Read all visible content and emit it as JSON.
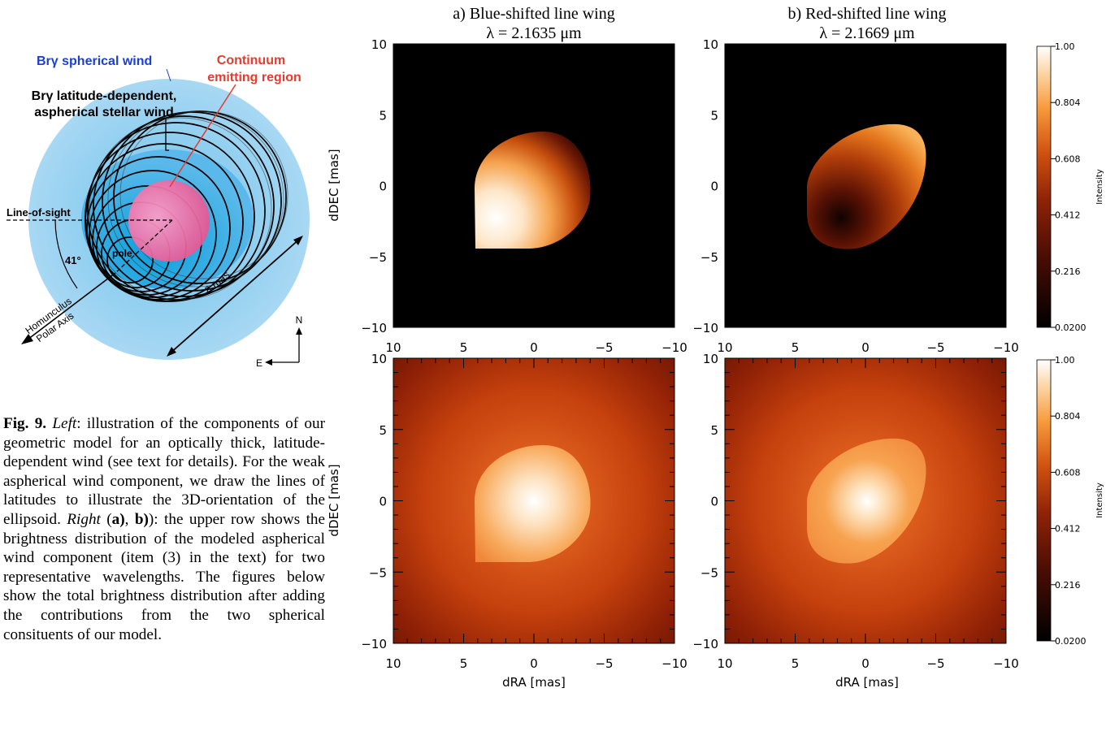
{
  "figure": {
    "schematic": {
      "wind_label": "Brγ spherical wind",
      "continuum_label_1": "Continuum",
      "continuum_label_2": "emitting region",
      "asph_label_1": "Brγ latitude-dependent,",
      "asph_label_2": "aspherical stellar wind",
      "los_label": "Line-of-sight",
      "angle_label": "41°",
      "pole_label": "pole",
      "axis_label_1": "Homunculus",
      "axis_label_2": "Polar Axis",
      "scale_label": "8 mas",
      "compass_n": "N",
      "compass_e": "E"
    },
    "panels": {
      "title_a_1": "a) Blue-shifted line wing",
      "title_a_2": "λ = 2.1635 μm",
      "title_b_1": "b) Red-shifted line wing",
      "title_b_2": "λ = 2.1669 μm",
      "xlabel": "dRA [mas]",
      "ylabel": "dDEC [mas]",
      "xticks": [
        "10",
        "5",
        "0",
        "−5",
        "−10"
      ],
      "yticks": [
        "10",
        "5",
        "0",
        "−5",
        "−10"
      ],
      "colorbar_label": "Intensity",
      "colorbar_ticks": [
        "1.00",
        "0.804",
        "0.608",
        "0.412",
        "0.216",
        "0.0200"
      ]
    },
    "caption": {
      "fig_label": "Fig. 9.",
      "left_label": "Left",
      "text_1": ": illustration of the components of our geometric model for an optically thick, latitude-dependent wind (see text for details). For the weak aspherical wind component, we draw the lines of latitudes to illustrate the 3D-orientation of the ellipsoid. ",
      "right_label": "Right",
      "paren_open": " (",
      "a_label": "a)",
      "comma": ", ",
      "b_label": "b)",
      "text_2": "): the upper row shows the brightness distribution of the modeled aspherical wind component (item (3) in the text) for two representative wavelengths. The figures below show the total brightness distribution after adding the contributions from the two spherical consituents of our model."
    }
  },
  "chart_data": [
    {
      "type": "heatmap",
      "title": "a) Blue-shifted line wing  λ = 2.1635 μm",
      "row": "upper",
      "xlabel": "dRA [mas]",
      "ylabel": "dDEC [mas]",
      "xlim": [
        10,
        -10
      ],
      "ylim": [
        -10,
        10
      ],
      "colorbar": {
        "label": "Intensity",
        "range": [
          0.02,
          1.0
        ],
        "ticks": [
          1.0,
          0.804,
          0.608,
          0.412,
          0.216,
          0.02
        ]
      }
    },
    {
      "type": "heatmap",
      "title": "b) Red-shifted line wing  λ = 2.1669 μm",
      "row": "upper",
      "xlabel": "dRA [mas]",
      "ylabel": "dDEC [mas]",
      "xlim": [
        10,
        -10
      ],
      "ylim": [
        -10,
        10
      ],
      "colorbar": {
        "label": "Intensity",
        "range": [
          0.02,
          1.0
        ],
        "ticks": [
          1.0,
          0.804,
          0.608,
          0.412,
          0.216,
          0.02
        ]
      }
    },
    {
      "type": "heatmap",
      "row": "lower",
      "xlabel": "dRA [mas]",
      "ylabel": "dDEC [mas]",
      "xlim": [
        10,
        -10
      ],
      "ylim": [
        -10,
        10
      ],
      "colorbar": {
        "label": "Intensity",
        "range": [
          0.02,
          1.0
        ],
        "ticks": [
          1.0,
          0.804,
          0.608,
          0.412,
          0.216,
          0.02
        ]
      }
    },
    {
      "type": "heatmap",
      "row": "lower",
      "xlabel": "dRA [mas]",
      "ylabel": "dDEC [mas]",
      "xlim": [
        10,
        -10
      ],
      "ylim": [
        -10,
        10
      ],
      "colorbar": {
        "label": "Intensity",
        "range": [
          0.02,
          1.0
        ],
        "ticks": [
          1.0,
          0.804,
          0.608,
          0.412,
          0.216,
          0.02
        ]
      }
    }
  ]
}
